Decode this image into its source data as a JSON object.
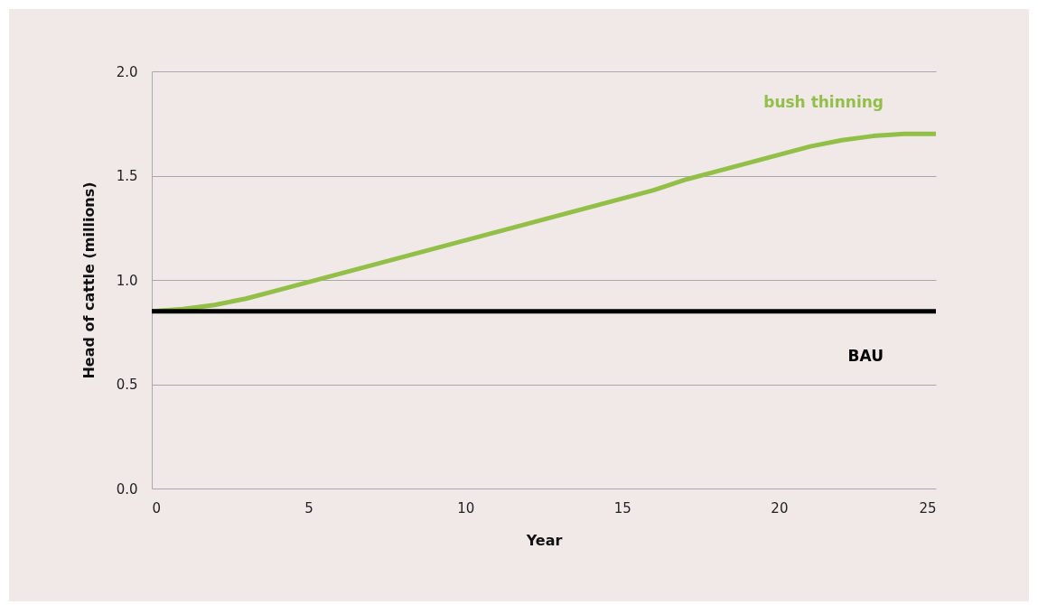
{
  "chart_data": {
    "type": "line",
    "xlabel": "Year",
    "ylabel": "Head of cattle (millions)",
    "x": [
      0,
      1,
      2,
      3,
      4,
      5,
      6,
      7,
      8,
      9,
      10,
      11,
      12,
      13,
      14,
      15,
      16,
      17,
      18,
      19,
      20,
      21,
      22,
      23,
      24,
      25
    ],
    "series": [
      {
        "name": "bush thinning",
        "color": "#92bf48",
        "values": [
          0.85,
          0.86,
          0.88,
          0.91,
          0.95,
          0.99,
          1.03,
          1.07,
          1.11,
          1.15,
          1.19,
          1.23,
          1.27,
          1.31,
          1.35,
          1.39,
          1.43,
          1.48,
          1.52,
          1.56,
          1.6,
          1.64,
          1.67,
          1.69,
          1.7,
          1.7
        ]
      },
      {
        "name": "BAU",
        "color": "#000000",
        "values": [
          0.85,
          0.85,
          0.85,
          0.85,
          0.85,
          0.85,
          0.85,
          0.85,
          0.85,
          0.85,
          0.85,
          0.85,
          0.85,
          0.85,
          0.85,
          0.85,
          0.85,
          0.85,
          0.85,
          0.85,
          0.85,
          0.85,
          0.85,
          0.85,
          0.85,
          0.85
        ]
      }
    ],
    "xlim": [
      0,
      25
    ],
    "xticks": [
      0,
      5,
      10,
      15,
      20,
      25
    ],
    "ylim": [
      0,
      2.0
    ],
    "yticks": [
      {
        "value": 0,
        "label": "0.0"
      },
      0.5,
      {
        "value": 1,
        "label": "1.0"
      },
      1.5,
      {
        "value": 2,
        "label": "2.0"
      }
    ],
    "grid": "y",
    "legend": false,
    "marker": "none",
    "line_style": "solid"
  }
}
